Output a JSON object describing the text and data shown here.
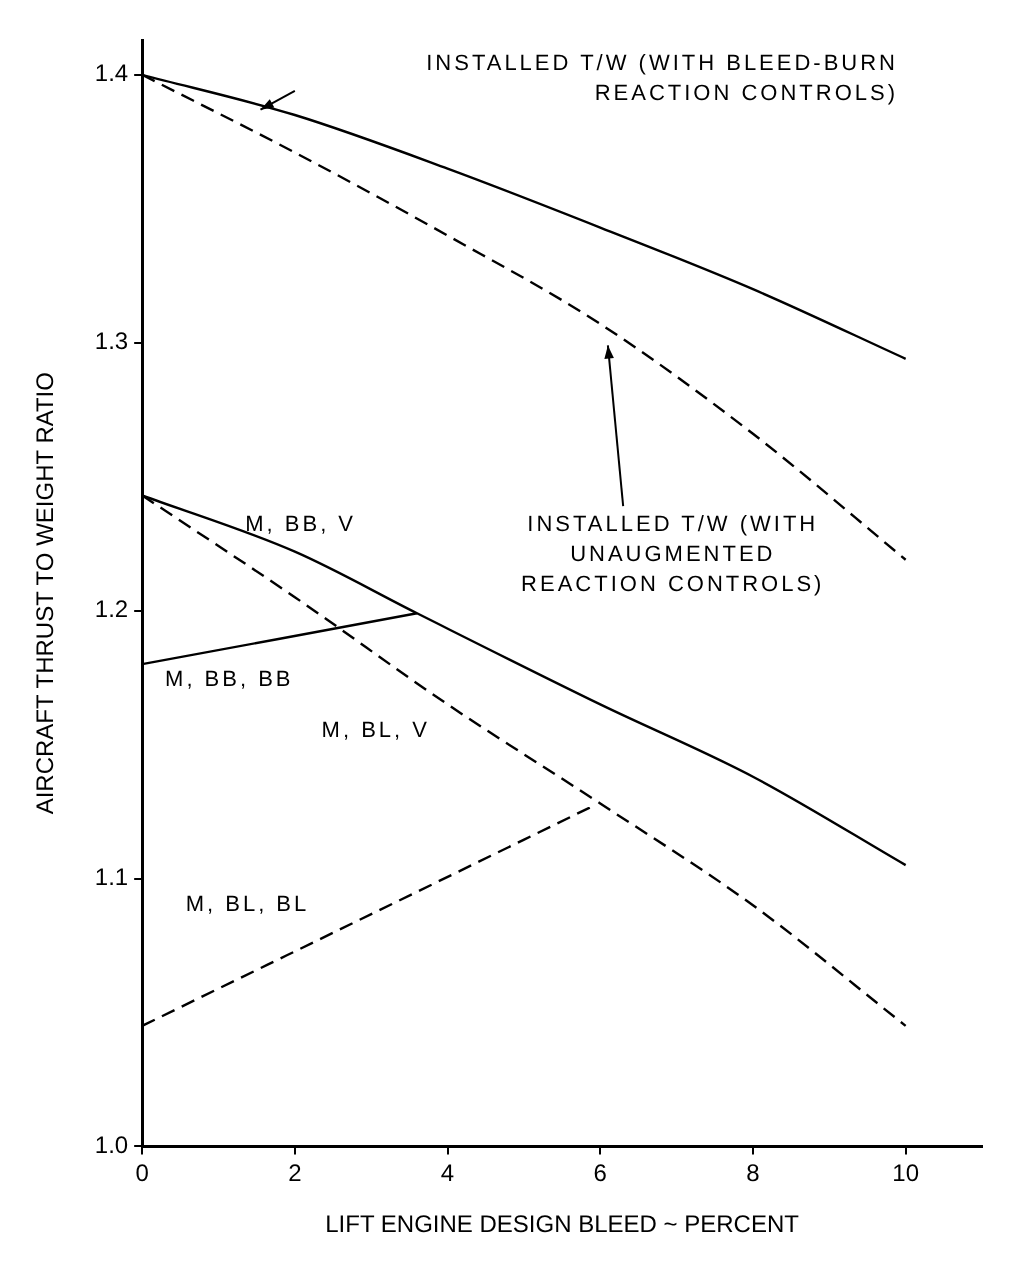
{
  "chart_data": {
    "type": "line",
    "xlabel": "LIFT ENGINE DESIGN BLEED ~ PERCENT",
    "ylabel": "AIRCRAFT THRUST TO WEIGHT RATIO",
    "xlim": [
      0,
      11
    ],
    "xticks": [
      0,
      2,
      4,
      6,
      8,
      10
    ],
    "ylim": [
      1.0,
      1.413
    ],
    "yticks": [
      {
        "value": 1.0,
        "label": "1.0"
      },
      1.1,
      1.2,
      1.3,
      1.4
    ],
    "grid": false,
    "legend": false,
    "marker": "none",
    "series": [
      {
        "name": "INSTALLED T/W (WITH BLEED-BURN REACTION CONTROLS)",
        "color": "#000000",
        "line_style": "solid",
        "x": [
          0,
          2,
          4,
          6,
          8,
          10
        ],
        "values": [
          1.4,
          1.385,
          1.365,
          1.343,
          1.32,
          1.294
        ]
      },
      {
        "name": "INSTALLED T/W (WITH UNAUGMENTED REACTION CONTROLS)",
        "color": "#000000",
        "line_style": "dashed",
        "x": [
          0,
          2,
          4,
          6,
          8,
          10
        ],
        "values": [
          1.4,
          1.371,
          1.34,
          1.307,
          1.266,
          1.219
        ]
      },
      {
        "name": "M, BB, V",
        "color": "#000000",
        "line_style": "solid",
        "x": [
          0,
          2,
          3.6,
          6,
          8,
          10
        ],
        "values": [
          1.243,
          1.222,
          1.199,
          1.165,
          1.138,
          1.105
        ]
      },
      {
        "name": "M, BL, V",
        "color": "#000000",
        "line_style": "dashed",
        "x": [
          0,
          2,
          4,
          6,
          8,
          10
        ],
        "values": [
          1.243,
          1.205,
          1.165,
          1.128,
          1.09,
          1.045
        ]
      },
      {
        "name": "M, BB, BB",
        "color": "#000000",
        "line_style": "solid",
        "x": [
          0,
          3.6
        ],
        "values": [
          1.18,
          1.199
        ]
      },
      {
        "name": "M, BL, BL",
        "color": "#000000",
        "line_style": "dashed",
        "x": [
          0,
          5.9
        ],
        "values": [
          1.045,
          1.127
        ]
      }
    ]
  }
}
